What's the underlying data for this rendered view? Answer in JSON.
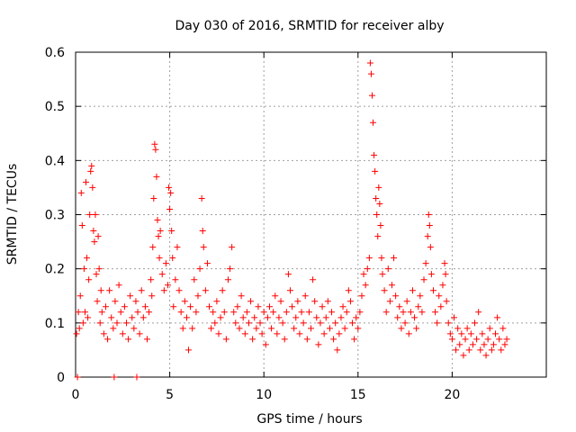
{
  "chart_data": {
    "type": "scatter",
    "title": "Day 030 of 2016, SRMTID for receiver alby",
    "xlabel": "GPS time / hours",
    "ylabel": "SRMTID / TECUs",
    "xlim": [
      0,
      25
    ],
    "ylim": [
      0,
      0.6
    ],
    "x_ticks": [
      0,
      5,
      10,
      15,
      20
    ],
    "x_tick_labels": [
      "0",
      "5",
      "10",
      "15",
      "20"
    ],
    "y_ticks": [
      0,
      0.1,
      0.2,
      0.3,
      0.4,
      0.5,
      0.6
    ],
    "y_tick_labels": [
      "0",
      "0.1",
      "0.2",
      "0.3",
      "0.4",
      "0.5",
      "0.6"
    ],
    "grid": true,
    "marker": "+",
    "color": "#ff0000",
    "series": [
      {
        "name": "SRMTID",
        "points": [
          [
            0.05,
            0.08
          ],
          [
            0.1,
            0.0
          ],
          [
            0.15,
            0.12
          ],
          [
            0.2,
            0.09
          ],
          [
            0.25,
            0.15
          ],
          [
            0.3,
            0.34
          ],
          [
            0.35,
            0.28
          ],
          [
            0.4,
            0.1
          ],
          [
            0.45,
            0.2
          ],
          [
            0.5,
            0.12
          ],
          [
            0.55,
            0.36
          ],
          [
            0.6,
            0.22
          ],
          [
            0.65,
            0.11
          ],
          [
            0.7,
            0.18
          ],
          [
            0.75,
            0.3
          ],
          [
            0.8,
            0.38
          ],
          [
            0.85,
            0.39
          ],
          [
            0.9,
            0.35
          ],
          [
            0.95,
            0.27
          ],
          [
            1.0,
            0.25
          ],
          [
            1.05,
            0.3
          ],
          [
            1.1,
            0.19
          ],
          [
            1.15,
            0.14
          ],
          [
            1.2,
            0.26
          ],
          [
            1.25,
            0.2
          ],
          [
            1.3,
            0.1
          ],
          [
            1.35,
            0.16
          ],
          [
            1.4,
            0.12
          ],
          [
            1.5,
            0.08
          ],
          [
            1.6,
            0.13
          ],
          [
            1.7,
            0.07
          ],
          [
            1.8,
            0.16
          ],
          [
            1.9,
            0.11
          ],
          [
            2.0,
            0.09
          ],
          [
            2.05,
            0.0
          ],
          [
            2.1,
            0.14
          ],
          [
            2.2,
            0.1
          ],
          [
            2.3,
            0.17
          ],
          [
            2.4,
            0.12
          ],
          [
            2.5,
            0.08
          ],
          [
            2.6,
            0.13
          ],
          [
            2.7,
            0.1
          ],
          [
            2.8,
            0.07
          ],
          [
            2.9,
            0.15
          ],
          [
            3.0,
            0.11
          ],
          [
            3.1,
            0.09
          ],
          [
            3.2,
            0.14
          ],
          [
            3.25,
            0.0
          ],
          [
            3.3,
            0.12
          ],
          [
            3.4,
            0.08
          ],
          [
            3.5,
            0.16
          ],
          [
            3.6,
            0.11
          ],
          [
            3.7,
            0.13
          ],
          [
            3.8,
            0.07
          ],
          [
            3.9,
            0.12
          ],
          [
            4.0,
            0.18
          ],
          [
            4.05,
            0.15
          ],
          [
            4.1,
            0.24
          ],
          [
            4.15,
            0.33
          ],
          [
            4.2,
            0.43
          ],
          [
            4.25,
            0.42
          ],
          [
            4.3,
            0.37
          ],
          [
            4.35,
            0.29
          ],
          [
            4.4,
            0.26
          ],
          [
            4.45,
            0.22
          ],
          [
            4.5,
            0.27
          ],
          [
            4.6,
            0.19
          ],
          [
            4.7,
            0.16
          ],
          [
            4.8,
            0.21
          ],
          [
            4.9,
            0.17
          ],
          [
            4.95,
            0.35
          ],
          [
            5.0,
            0.31
          ],
          [
            5.05,
            0.34
          ],
          [
            5.1,
            0.27
          ],
          [
            5.15,
            0.22
          ],
          [
            5.2,
            0.13
          ],
          [
            5.3,
            0.18
          ],
          [
            5.4,
            0.24
          ],
          [
            5.5,
            0.16
          ],
          [
            5.6,
            0.12
          ],
          [
            5.7,
            0.09
          ],
          [
            5.8,
            0.14
          ],
          [
            5.9,
            0.11
          ],
          [
            6.0,
            0.05
          ],
          [
            6.1,
            0.13
          ],
          [
            6.2,
            0.09
          ],
          [
            6.3,
            0.18
          ],
          [
            6.4,
            0.12
          ],
          [
            6.5,
            0.15
          ],
          [
            6.6,
            0.2
          ],
          [
            6.7,
            0.33
          ],
          [
            6.75,
            0.27
          ],
          [
            6.8,
            0.24
          ],
          [
            6.9,
            0.16
          ],
          [
            7.0,
            0.21
          ],
          [
            7.1,
            0.13
          ],
          [
            7.2,
            0.09
          ],
          [
            7.3,
            0.12
          ],
          [
            7.4,
            0.1
          ],
          [
            7.5,
            0.14
          ],
          [
            7.6,
            0.08
          ],
          [
            7.7,
            0.11
          ],
          [
            7.8,
            0.16
          ],
          [
            7.9,
            0.12
          ],
          [
            8.0,
            0.07
          ],
          [
            8.1,
            0.18
          ],
          [
            8.2,
            0.2
          ],
          [
            8.3,
            0.24
          ],
          [
            8.4,
            0.12
          ],
          [
            8.5,
            0.1
          ],
          [
            8.6,
            0.13
          ],
          [
            8.7,
            0.09
          ],
          [
            8.8,
            0.15
          ],
          [
            8.9,
            0.11
          ],
          [
            9.0,
            0.08
          ],
          [
            9.1,
            0.12
          ],
          [
            9.2,
            0.1
          ],
          [
            9.3,
            0.14
          ],
          [
            9.4,
            0.07
          ],
          [
            9.5,
            0.11
          ],
          [
            9.6,
            0.09
          ],
          [
            9.7,
            0.13
          ],
          [
            9.8,
            0.1
          ],
          [
            9.9,
            0.08
          ],
          [
            10.0,
            0.12
          ],
          [
            10.1,
            0.06
          ],
          [
            10.2,
            0.11
          ],
          [
            10.3,
            0.13
          ],
          [
            10.4,
            0.09
          ],
          [
            10.5,
            0.12
          ],
          [
            10.6,
            0.15
          ],
          [
            10.7,
            0.08
          ],
          [
            10.8,
            0.11
          ],
          [
            10.9,
            0.14
          ],
          [
            11.0,
            0.1
          ],
          [
            11.1,
            0.07
          ],
          [
            11.2,
            0.12
          ],
          [
            11.3,
            0.19
          ],
          [
            11.4,
            0.16
          ],
          [
            11.5,
            0.13
          ],
          [
            11.6,
            0.09
          ],
          [
            11.7,
            0.11
          ],
          [
            11.8,
            0.14
          ],
          [
            11.9,
            0.08
          ],
          [
            12.0,
            0.12
          ],
          [
            12.1,
            0.1
          ],
          [
            12.2,
            0.15
          ],
          [
            12.3,
            0.07
          ],
          [
            12.4,
            0.12
          ],
          [
            12.5,
            0.09
          ],
          [
            12.6,
            0.18
          ],
          [
            12.7,
            0.14
          ],
          [
            12.8,
            0.11
          ],
          [
            12.9,
            0.06
          ],
          [
            13.0,
            0.1
          ],
          [
            13.1,
            0.13
          ],
          [
            13.2,
            0.08
          ],
          [
            13.3,
            0.11
          ],
          [
            13.4,
            0.14
          ],
          [
            13.5,
            0.09
          ],
          [
            13.6,
            0.12
          ],
          [
            13.7,
            0.07
          ],
          [
            13.8,
            0.1
          ],
          [
            13.9,
            0.05
          ],
          [
            14.0,
            0.08
          ],
          [
            14.1,
            0.11
          ],
          [
            14.2,
            0.13
          ],
          [
            14.3,
            0.09
          ],
          [
            14.4,
            0.12
          ],
          [
            14.5,
            0.16
          ],
          [
            14.6,
            0.14
          ],
          [
            14.7,
            0.1
          ],
          [
            14.8,
            0.07
          ],
          [
            14.9,
            0.11
          ],
          [
            15.0,
            0.09
          ],
          [
            15.1,
            0.12
          ],
          [
            15.2,
            0.15
          ],
          [
            15.3,
            0.19
          ],
          [
            15.4,
            0.17
          ],
          [
            15.5,
            0.2
          ],
          [
            15.6,
            0.22
          ],
          [
            15.65,
            0.58
          ],
          [
            15.7,
            0.56
          ],
          [
            15.75,
            0.52
          ],
          [
            15.8,
            0.47
          ],
          [
            15.85,
            0.41
          ],
          [
            15.9,
            0.38
          ],
          [
            15.95,
            0.33
          ],
          [
            16.0,
            0.3
          ],
          [
            16.05,
            0.26
          ],
          [
            16.1,
            0.35
          ],
          [
            16.15,
            0.32
          ],
          [
            16.2,
            0.28
          ],
          [
            16.25,
            0.22
          ],
          [
            16.3,
            0.19
          ],
          [
            16.4,
            0.16
          ],
          [
            16.5,
            0.12
          ],
          [
            16.6,
            0.2
          ],
          [
            16.7,
            0.14
          ],
          [
            16.8,
            0.17
          ],
          [
            16.9,
            0.22
          ],
          [
            17.0,
            0.15
          ],
          [
            17.1,
            0.11
          ],
          [
            17.2,
            0.13
          ],
          [
            17.3,
            0.09
          ],
          [
            17.4,
            0.12
          ],
          [
            17.5,
            0.1
          ],
          [
            17.6,
            0.14
          ],
          [
            17.7,
            0.08
          ],
          [
            17.8,
            0.12
          ],
          [
            17.9,
            0.16
          ],
          [
            18.0,
            0.11
          ],
          [
            18.1,
            0.09
          ],
          [
            18.2,
            0.13
          ],
          [
            18.3,
            0.15
          ],
          [
            18.4,
            0.12
          ],
          [
            18.5,
            0.18
          ],
          [
            18.6,
            0.21
          ],
          [
            18.7,
            0.26
          ],
          [
            18.75,
            0.3
          ],
          [
            18.8,
            0.28
          ],
          [
            18.85,
            0.24
          ],
          [
            18.9,
            0.19
          ],
          [
            19.0,
            0.16
          ],
          [
            19.1,
            0.12
          ],
          [
            19.2,
            0.1
          ],
          [
            19.3,
            0.15
          ],
          [
            19.4,
            0.13
          ],
          [
            19.5,
            0.17
          ],
          [
            19.6,
            0.21
          ],
          [
            19.65,
            0.19
          ],
          [
            19.7,
            0.14
          ],
          [
            19.8,
            0.1
          ],
          [
            19.9,
            0.08
          ],
          [
            20.0,
            0.07
          ],
          [
            20.1,
            0.11
          ],
          [
            20.2,
            0.05
          ],
          [
            20.3,
            0.09
          ],
          [
            20.4,
            0.06
          ],
          [
            20.5,
            0.08
          ],
          [
            20.6,
            0.04
          ],
          [
            20.7,
            0.07
          ],
          [
            20.8,
            0.09
          ],
          [
            20.9,
            0.05
          ],
          [
            21.0,
            0.08
          ],
          [
            21.1,
            0.06
          ],
          [
            21.2,
            0.1
          ],
          [
            21.3,
            0.07
          ],
          [
            21.4,
            0.12
          ],
          [
            21.5,
            0.05
          ],
          [
            21.6,
            0.08
          ],
          [
            21.7,
            0.06
          ],
          [
            21.8,
            0.04
          ],
          [
            21.9,
            0.07
          ],
          [
            22.0,
            0.09
          ],
          [
            22.1,
            0.05
          ],
          [
            22.2,
            0.06
          ],
          [
            22.3,
            0.08
          ],
          [
            22.4,
            0.11
          ],
          [
            22.5,
            0.07
          ],
          [
            22.6,
            0.05
          ],
          [
            22.7,
            0.09
          ],
          [
            22.8,
            0.06
          ],
          [
            22.9,
            0.07
          ]
        ]
      }
    ]
  }
}
